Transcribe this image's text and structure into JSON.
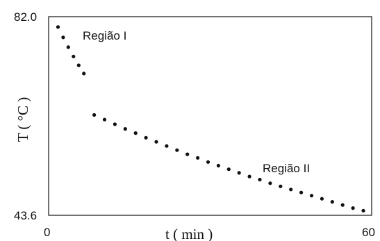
{
  "chart_data": {
    "type": "scatter",
    "xlabel": "t ( min )",
    "ylabel": "T ( °C )",
    "xlim": [
      0,
      60
    ],
    "ylim": [
      43.6,
      82.0
    ],
    "x_tick_labels": [
      "0",
      "60"
    ],
    "y_tick_labels": [
      "82.0",
      "43.6"
    ],
    "grid": false,
    "annotations": [
      "Região I",
      "Região II"
    ],
    "series": [
      {
        "points": [
          [
            1,
            80.0
          ],
          [
            2,
            78.0
          ],
          [
            3,
            76.1
          ],
          [
            4,
            74.3
          ],
          [
            5,
            72.6
          ],
          [
            6,
            71.0
          ],
          [
            8,
            63.0
          ],
          [
            10,
            62.1
          ],
          [
            12,
            61.2
          ],
          [
            14,
            60.3
          ],
          [
            16,
            59.5
          ],
          [
            18,
            58.6
          ],
          [
            20,
            57.8
          ],
          [
            22,
            57.0
          ],
          [
            24,
            56.2
          ],
          [
            26,
            55.4
          ],
          [
            28,
            54.7
          ],
          [
            30,
            53.9
          ],
          [
            32,
            53.2
          ],
          [
            34,
            52.5
          ],
          [
            36,
            51.8
          ],
          [
            38,
            51.1
          ],
          [
            40,
            50.5
          ],
          [
            42,
            49.8
          ],
          [
            44,
            49.2
          ],
          [
            46,
            48.6
          ],
          [
            48,
            48.0
          ],
          [
            50,
            47.4
          ],
          [
            52,
            46.8
          ],
          [
            54,
            46.2
          ],
          [
            56,
            45.6
          ],
          [
            58,
            45.0
          ],
          [
            60,
            44.5
          ]
        ]
      }
    ]
  }
}
